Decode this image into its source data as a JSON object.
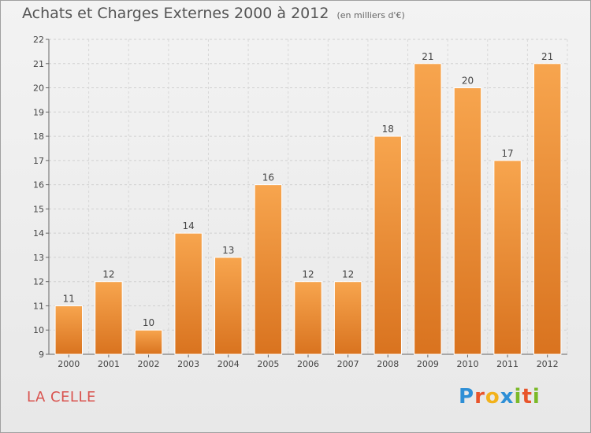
{
  "header": {
    "title": "Achats et Charges Externes 2000 à 2012",
    "subtitle": "(en milliers d'€)"
  },
  "footer": {
    "commune": "LA CELLE",
    "logo_text": "Proxiti"
  },
  "colors": {
    "bar_top": "#f7a54e",
    "bar_bottom": "#d9731f",
    "commune": "#d9534f"
  },
  "chart_data": {
    "type": "bar",
    "categories": [
      "2000",
      "2001",
      "2002",
      "2003",
      "2004",
      "2005",
      "2006",
      "2007",
      "2008",
      "2009",
      "2010",
      "2011",
      "2012"
    ],
    "values": [
      11,
      12,
      10,
      14,
      13,
      16,
      12,
      12,
      18,
      21,
      20,
      17,
      21
    ],
    "ylim": [
      9,
      22
    ],
    "yticks": [
      9,
      10,
      11,
      12,
      13,
      14,
      15,
      16,
      17,
      18,
      19,
      20,
      21,
      22
    ],
    "grid": true,
    "data_labels": true
  }
}
